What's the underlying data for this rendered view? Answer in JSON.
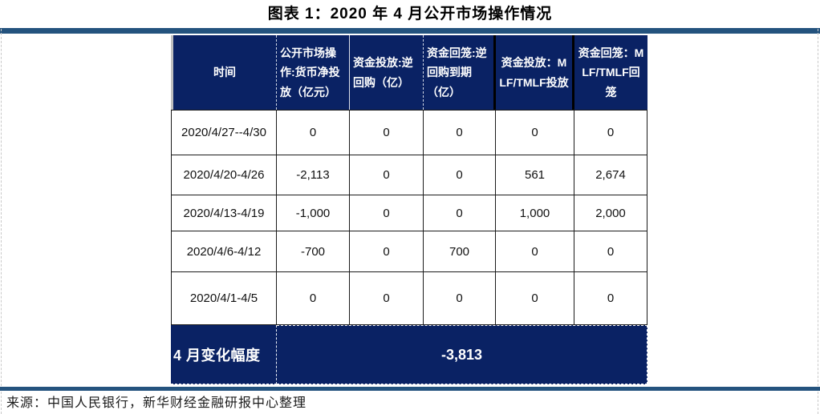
{
  "page": {
    "title": "图表 1：2020 年 4 月公开市场操作情况",
    "source": "来源：中国人民银行，新华财经金融研报中心整理"
  },
  "colors": {
    "table_header_bg": "#0a2264",
    "summary_row_bg": "#0a2264",
    "rule_bar": "#24537e",
    "header_text": "#ffffff",
    "body_text": "#111111",
    "grid_border": "#1b1b1b",
    "dashed_gridline": "#c9c9c9"
  },
  "chart_data": {
    "type": "table",
    "title": "图表 1：2020 年 4 月公开市场操作情况",
    "columns": [
      "时间",
      "公开市场操作:货币净投放（亿元）",
      "资金投放:逆回购（亿）",
      "资金回笼:逆回购到期（亿）",
      "资金投放：MLF/TMLF投放",
      "资金回笼：MLF/TMLF回笼"
    ],
    "rows": [
      [
        "2020/4/27--4/30",
        "0",
        "0",
        "0",
        "0",
        "0"
      ],
      [
        "2020/4/20-4/26",
        "-2,113",
        "0",
        "0",
        "561",
        "2,674"
      ],
      [
        "2020/4/13-4/19",
        "-1,000",
        "0",
        "0",
        "1,000",
        "2,000"
      ],
      [
        "2020/4/6-4/12",
        "-700",
        "0",
        "700",
        "0",
        "0"
      ],
      [
        "2020/4/1-4/5",
        "0",
        "0",
        "0",
        "0",
        "0"
      ]
    ],
    "summary": {
      "label": "4 月变化幅度",
      "value": "-3,813"
    },
    "source": "来源：中国人民银行，新华财经金融研报中心整理"
  }
}
